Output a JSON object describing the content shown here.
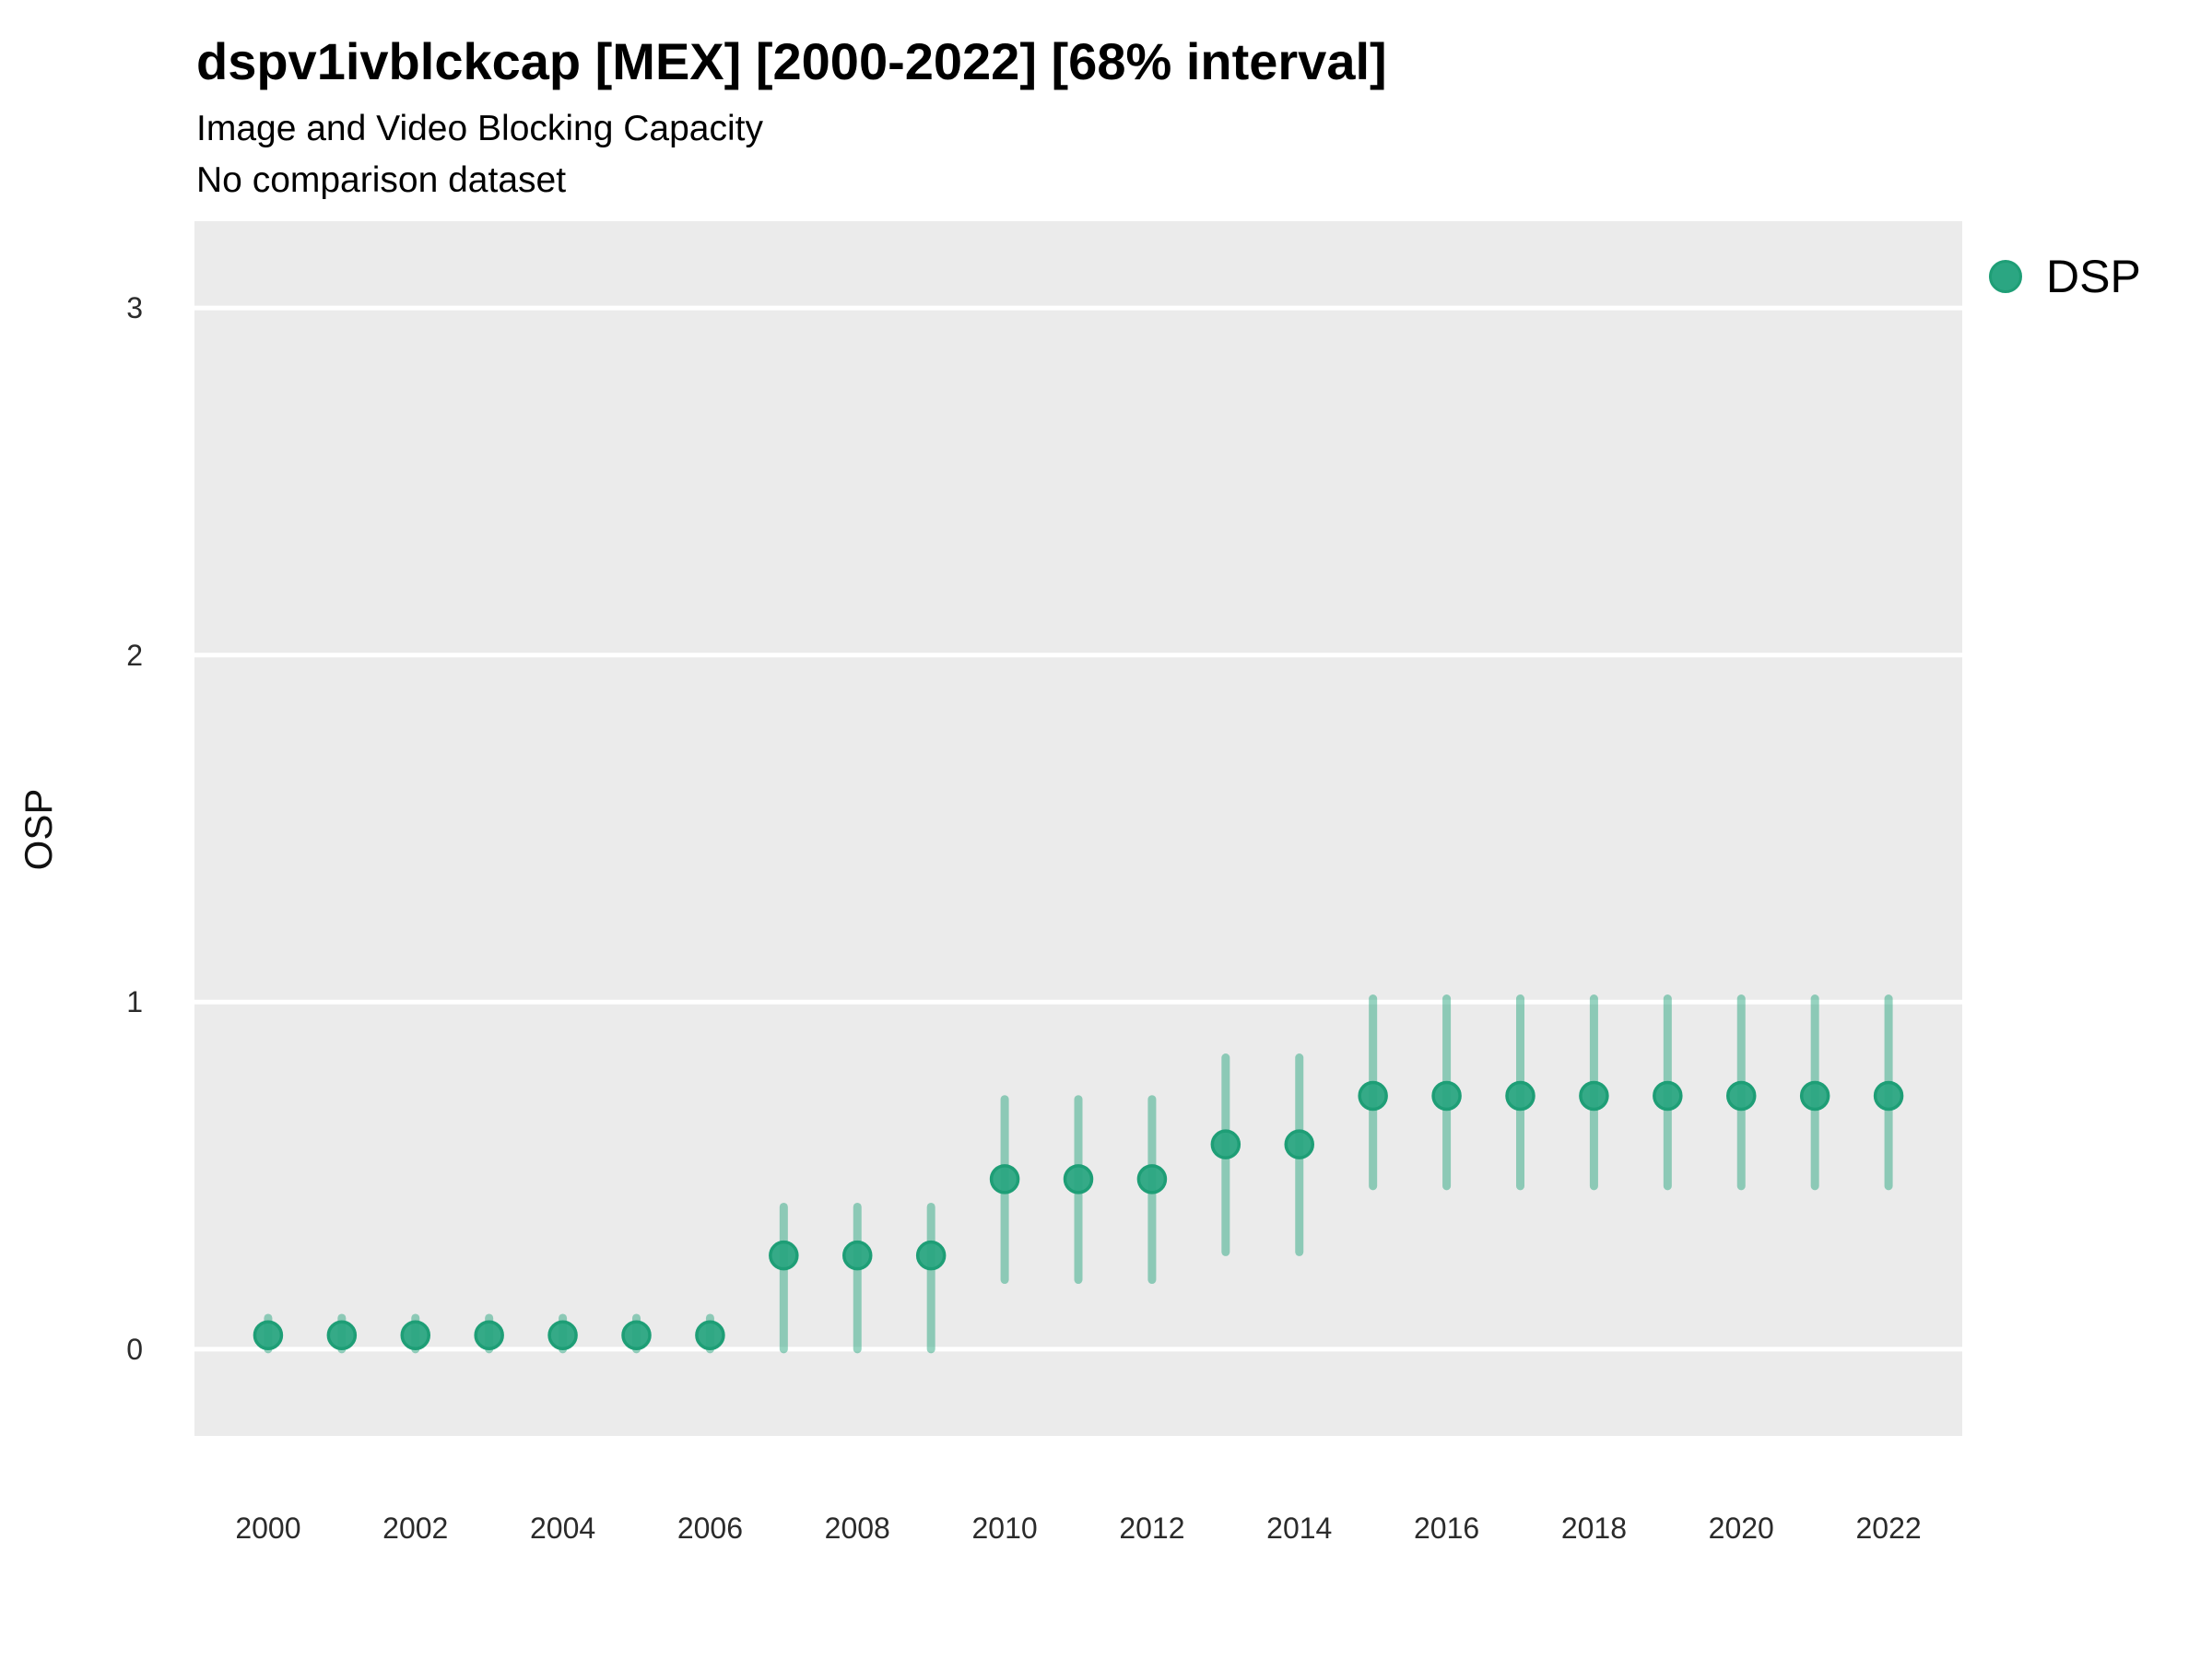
{
  "header": {
    "title": "dspv1ivblckcap [MEX] [2000-2022] [68% interval]",
    "subtitle": "Image and Video Blocking Capacity",
    "note": "No comparison dataset"
  },
  "legend": {
    "series_label": "DSP"
  },
  "axes": {
    "y_title": "OSP",
    "y_ticks": [
      0,
      1,
      2,
      3
    ],
    "x_ticks": [
      2000,
      2002,
      2004,
      2006,
      2008,
      2010,
      2012,
      2014,
      2016,
      2018,
      2020,
      2022
    ]
  },
  "chart_data": {
    "type": "scatter",
    "title": "dspv1ivblckcap [MEX] [2000-2022] [68% interval]",
    "subtitle": "Image and Video Blocking Capacity",
    "note": "No comparison dataset",
    "xlabel": "",
    "ylabel": "OSP",
    "xlim": [
      1999,
      2023
    ],
    "ylim": [
      -0.25,
      3.25
    ],
    "grid": "major-horizontal-white-on-grey",
    "legend_position": "right-top",
    "interval_level": "68%",
    "x": [
      2000,
      2001,
      2002,
      2003,
      2004,
      2005,
      2006,
      2007,
      2008,
      2009,
      2010,
      2011,
      2012,
      2013,
      2014,
      2015,
      2016,
      2017,
      2018,
      2019,
      2020,
      2021,
      2022
    ],
    "series": [
      {
        "name": "DSP",
        "values": [
          0.04,
          0.04,
          0.04,
          0.04,
          0.04,
          0.04,
          0.04,
          0.27,
          0.27,
          0.27,
          0.49,
          0.49,
          0.49,
          0.59,
          0.59,
          0.73,
          0.73,
          0.73,
          0.73,
          0.73,
          0.73,
          0.73,
          0.73
        ],
        "lower": [
          0.0,
          0.0,
          0.0,
          0.0,
          0.0,
          0.0,
          0.0,
          0.0,
          0.0,
          0.0,
          0.2,
          0.2,
          0.2,
          0.28,
          0.28,
          0.47,
          0.47,
          0.47,
          0.47,
          0.47,
          0.47,
          0.47,
          0.47
        ],
        "upper": [
          0.09,
          0.09,
          0.09,
          0.09,
          0.09,
          0.09,
          0.09,
          0.41,
          0.41,
          0.41,
          0.72,
          0.72,
          0.72,
          0.84,
          0.84,
          1.01,
          1.01,
          1.01,
          1.01,
          1.01,
          1.01,
          1.01,
          1.01
        ]
      }
    ],
    "colors": {
      "panel_background": "#EBEBEB",
      "gridline": "#FFFFFF",
      "point_fill": "#2BA682",
      "point_stroke": "#1E9E76",
      "interval_bar": "rgba(46,168,130,0.5)",
      "text": "#000000"
    }
  }
}
